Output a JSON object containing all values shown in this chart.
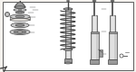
{
  "bg_color": "#f5f2ee",
  "border_color": "#777777",
  "line_color": "#444444",
  "part_dark": "#666666",
  "part_mid": "#999999",
  "part_light": "#cccccc",
  "part_pale": "#e0ddd8",
  "figsize": [
    1.5,
    0.8
  ],
  "dpi": 100
}
